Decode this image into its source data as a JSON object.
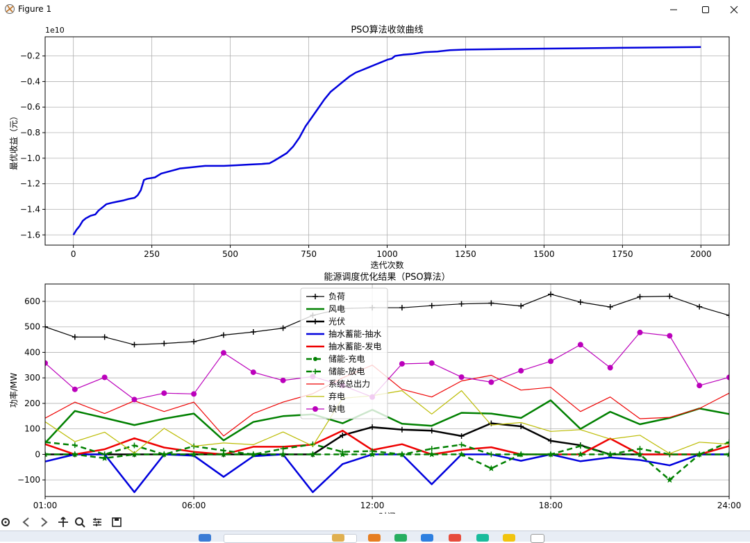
{
  "window": {
    "title": "Figure 1"
  },
  "status": {
    "coords": ""
  },
  "chart_data": [
    {
      "type": "line",
      "title": "PSO算法收敛曲线",
      "xlabel": "迭代次数",
      "ylabel": "最优收益（元）",
      "offset_text": "1e10",
      "xlim": [
        -90,
        2090
      ],
      "ylim": [
        -1.68,
        -0.05
      ],
      "xticks": [
        0,
        250,
        500,
        750,
        1000,
        1250,
        1500,
        1750,
        2000
      ],
      "xtick_labels": [
        "0",
        "250",
        "500",
        "750",
        "1000",
        "1250",
        "1500",
        "1750",
        "2000"
      ],
      "yticks": [
        -1.6,
        -1.4,
        -1.2,
        -1.0,
        -0.8,
        -0.6,
        -0.4,
        -0.2
      ],
      "ytick_labels": [
        "−1.6",
        "−1.4",
        "−1.2",
        "−1.0",
        "−0.8",
        "−0.6",
        "−0.4",
        "−0.2"
      ],
      "grid": true,
      "series": [
        {
          "name": "",
          "color": "#0000dd",
          "points": [
            [
              0,
              -1.6
            ],
            [
              10,
              -1.56
            ],
            [
              20,
              -1.53
            ],
            [
              30,
              -1.49
            ],
            [
              40,
              -1.47
            ],
            [
              55,
              -1.45
            ],
            [
              70,
              -1.44
            ],
            [
              80,
              -1.41
            ],
            [
              95,
              -1.38
            ],
            [
              105,
              -1.36
            ],
            [
              120,
              -1.35
            ],
            [
              140,
              -1.34
            ],
            [
              160,
              -1.33
            ],
            [
              175,
              -1.32
            ],
            [
              195,
              -1.31
            ],
            [
              205,
              -1.29
            ],
            [
              215,
              -1.25
            ],
            [
              225,
              -1.17
            ],
            [
              235,
              -1.16
            ],
            [
              260,
              -1.15
            ],
            [
              280,
              -1.12
            ],
            [
              310,
              -1.1
            ],
            [
              340,
              -1.08
            ],
            [
              380,
              -1.07
            ],
            [
              420,
              -1.06
            ],
            [
              480,
              -1.06
            ],
            [
              520,
              -1.055
            ],
            [
              560,
              -1.05
            ],
            [
              600,
              -1.045
            ],
            [
              625,
              -1.04
            ],
            [
              640,
              -1.02
            ],
            [
              660,
              -0.99
            ],
            [
              680,
              -0.96
            ],
            [
              700,
              -0.91
            ],
            [
              720,
              -0.84
            ],
            [
              740,
              -0.75
            ],
            [
              760,
              -0.68
            ],
            [
              780,
              -0.61
            ],
            [
              800,
              -0.54
            ],
            [
              820,
              -0.48
            ],
            [
              840,
              -0.44
            ],
            [
              860,
              -0.4
            ],
            [
              880,
              -0.36
            ],
            [
              900,
              -0.33
            ],
            [
              920,
              -0.31
            ],
            [
              940,
              -0.29
            ],
            [
              960,
              -0.27
            ],
            [
              980,
              -0.25
            ],
            [
              1000,
              -0.23
            ],
            [
              1015,
              -0.22
            ],
            [
              1025,
              -0.2
            ],
            [
              1050,
              -0.19
            ],
            [
              1080,
              -0.185
            ],
            [
              1120,
              -0.17
            ],
            [
              1160,
              -0.165
            ],
            [
              1200,
              -0.155
            ],
            [
              1250,
              -0.15
            ],
            [
              1400,
              -0.145
            ],
            [
              1600,
              -0.14
            ],
            [
              1800,
              -0.135
            ],
            [
              2000,
              -0.13
            ]
          ]
        }
      ]
    },
    {
      "type": "line",
      "title": "能源调度优化结果（PSO算法）",
      "xlabel": "时间",
      "ylabel": "功率/MW",
      "xlim": [
        1,
        24
      ],
      "ylim": [
        -165,
        668
      ],
      "xticks": [
        1,
        6,
        12,
        18,
        24
      ],
      "xtick_labels": [
        "01:00",
        "06:00",
        "12:00",
        "18:00",
        "24:00"
      ],
      "yticks": [
        -100,
        0,
        100,
        200,
        300,
        400,
        500,
        600
      ],
      "ytick_labels": [
        "−100",
        "0",
        "100",
        "200",
        "300",
        "400",
        "500",
        "600"
      ],
      "grid": true,
      "legend_loc": "upper center",
      "x": [
        1,
        2,
        3,
        4,
        5,
        6,
        7,
        8,
        9,
        10,
        11,
        12,
        13,
        14,
        15,
        16,
        17,
        18,
        19,
        20,
        21,
        22,
        23,
        24
      ],
      "series": [
        {
          "name": "负荷",
          "color": "#000000",
          "width": 1.2,
          "dash": "",
          "marker": "plus",
          "values": [
            500,
            460,
            460,
            430,
            435,
            442,
            468,
            480,
            495,
            545,
            572,
            575,
            575,
            583,
            590,
            593,
            582,
            628,
            597,
            578,
            618,
            620,
            579,
            545
          ]
        },
        {
          "name": "风电",
          "color": "#008000",
          "width": 2.5,
          "dash": "",
          "marker": "",
          "values": [
            45,
            170,
            143,
            115,
            140,
            160,
            55,
            127,
            150,
            157,
            122,
            175,
            120,
            112,
            163,
            160,
            143,
            212,
            100,
            167,
            118,
            143,
            180,
            158
          ]
        },
        {
          "name": "光伏",
          "color": "#000000",
          "width": 2.5,
          "dash": "",
          "marker": "plus",
          "values": [
            0,
            0,
            0,
            0,
            0,
            0,
            0,
            0,
            0,
            0,
            75,
            107,
            97,
            93,
            72,
            122,
            110,
            53,
            36,
            0,
            0,
            0,
            0,
            0
          ]
        },
        {
          "name": "抽水蓄能-抽水",
          "color": "#0000dd",
          "width": 2.5,
          "dash": "",
          "marker": "",
          "values": [
            -28,
            0,
            0,
            -148,
            0,
            -5,
            -88,
            -7,
            0,
            -148,
            -38,
            0,
            0,
            -117,
            0,
            0,
            -25,
            0,
            -27,
            -12,
            -22,
            -43,
            0,
            0
          ]
        },
        {
          "name": "抽水蓄能-发电",
          "color": "#ee0000",
          "width": 2.5,
          "dash": "",
          "marker": "",
          "values": [
            40,
            0,
            20,
            63,
            27,
            10,
            0,
            30,
            30,
            38,
            93,
            17,
            40,
            0,
            18,
            28,
            0,
            0,
            0,
            62,
            0,
            0,
            0,
            33
          ]
        },
        {
          "name": "储能-充电",
          "color": "#008000",
          "width": 2.5,
          "dash": "8,5",
          "marker": "star",
          "values": [
            0,
            0,
            -15,
            0,
            0,
            0,
            0,
            0,
            0,
            0,
            0,
            0,
            0,
            0,
            0,
            -55,
            0,
            0,
            0,
            0,
            0,
            -100,
            0,
            0
          ]
        },
        {
          "name": "储能-放电",
          "color": "#008000",
          "width": 2.5,
          "dash": "8,5",
          "marker": "plus",
          "values": [
            48,
            36,
            0,
            35,
            0,
            32,
            15,
            0,
            22,
            40,
            10,
            13,
            0,
            22,
            38,
            0,
            0,
            0,
            33,
            0,
            22,
            0,
            0,
            48
          ]
        },
        {
          "name": "系统总出力",
          "color": "#ee0000",
          "width": 1.2,
          "dash": "",
          "marker": "",
          "values": [
            142,
            205,
            160,
            210,
            168,
            205,
            72,
            160,
            205,
            238,
            300,
            350,
            255,
            225,
            288,
            310,
            252,
            263,
            168,
            225,
            140,
            145,
            180,
            240
          ]
        },
        {
          "name": "弃电",
          "color": "#bbbb00",
          "width": 1.2,
          "dash": "",
          "marker": "",
          "values": [
            128,
            50,
            87,
            5,
            102,
            32,
            45,
            38,
            88,
            33,
            220,
            230,
            250,
            158,
            250,
            115,
            125,
            90,
            97,
            60,
            75,
            3,
            48,
            40
          ]
        },
        {
          "name": "缺电",
          "color": "#bb00bb",
          "width": 1.2,
          "dash": "",
          "marker": "circle",
          "values": [
            358,
            255,
            302,
            215,
            240,
            237,
            398,
            322,
            290,
            305,
            270,
            225,
            355,
            358,
            303,
            283,
            328,
            365,
            430,
            340,
            478,
            465,
            270,
            302
          ]
        }
      ]
    }
  ]
}
